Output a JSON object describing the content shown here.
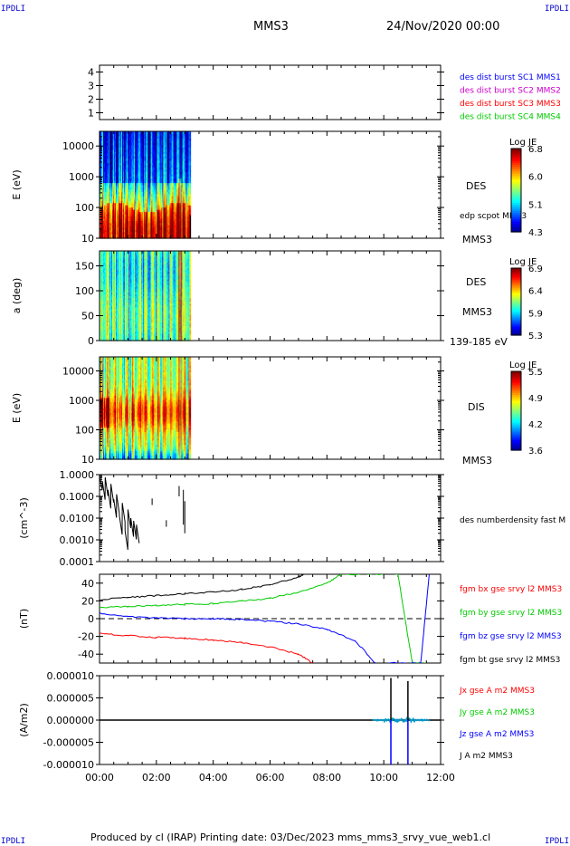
{
  "corner_labels": {
    "top_left": "IPDLI",
    "top_right": "IPDLI",
    "bottom_left": "IPDLI",
    "bottom_right": "IPDLI"
  },
  "header": {
    "spacecraft": "MMS3",
    "date": "24/Nov/2020 00:00"
  },
  "footer": {
    "text": "Produced by cl (IRAP)   Printing date: 03/Dec/2023   mms_mms3_srvy_vue_web1.cl"
  },
  "colors": {
    "mms1": "#0000ff",
    "mms2": "#cc00cc",
    "mms3": "#ff0000",
    "mms4": "#00cc00",
    "black": "#000000"
  },
  "chart_data": [
    {
      "type": "line",
      "panel": "burst-intervals",
      "ylim": [
        0.5,
        4.5
      ],
      "ytick_labels": [
        "4",
        "3",
        "2",
        "1"
      ],
      "legend": [
        {
          "name": "des dist burst SC1 MMS1",
          "color": "#0000ff"
        },
        {
          "name": "des dist burst SC2 MMS2",
          "color": "#cc00cc"
        },
        {
          "name": "des dist burst SC3 MMS3",
          "color": "#ff0000"
        },
        {
          "name": "des dist burst SC4 MMS4",
          "color": "#00cc00"
        }
      ]
    },
    {
      "type": "heatmap",
      "panel": "des-energy",
      "ylabel": "E (eV)",
      "yscale": "log",
      "ylim": [
        10,
        30000
      ],
      "ytick_labels": [
        "10000",
        "1000",
        "100",
        "10"
      ],
      "xlim_hours": [
        0,
        3.2
      ],
      "colorbar": {
        "title": "Log JE",
        "ticks": [
          "6.8",
          "6.0",
          "5.1",
          "4.3"
        ],
        "range": [
          4.3,
          6.8
        ]
      },
      "labels": [
        "DES",
        "edp scpot MMS3",
        "MMS3"
      ]
    },
    {
      "type": "heatmap",
      "panel": "des-pitch",
      "ylabel": "a (deg)",
      "ylim": [
        0,
        180
      ],
      "ytick_labels": [
        "150",
        "100",
        "50",
        "0"
      ],
      "xlim_hours": [
        0,
        3.2
      ],
      "colorbar": {
        "title": "Log JE",
        "ticks": [
          "6.9",
          "6.4",
          "5.9",
          "5.3"
        ],
        "range": [
          5.3,
          6.9
        ]
      },
      "labels": [
        "DES",
        "MMS3",
        "139-185 eV"
      ]
    },
    {
      "type": "heatmap",
      "panel": "dis-energy",
      "ylabel": "E (eV)",
      "yscale": "log",
      "ylim": [
        10,
        30000
      ],
      "ytick_labels": [
        "10000",
        "1000",
        "100",
        "10"
      ],
      "xlim_hours": [
        0,
        3.2
      ],
      "colorbar": {
        "title": "Log JE",
        "ticks": [
          "5.5",
          "4.9",
          "4.2",
          "3.6"
        ],
        "range": [
          3.6,
          5.5
        ]
      },
      "labels": [
        "DIS",
        "MMS3"
      ]
    },
    {
      "type": "line",
      "panel": "density",
      "ylabel": "(cm^-3)",
      "yscale": "log",
      "ylim": [
        0.0001,
        1.0
      ],
      "ytick_labels": [
        "1.0000",
        "0.1000",
        "0.0100",
        "0.0010",
        "0.0001"
      ],
      "legend": [
        {
          "name": "des numberdensity fast M",
          "color": "#000000"
        }
      ],
      "x": [
        0.0,
        0.1,
        0.2,
        0.3,
        0.4,
        0.5,
        0.6,
        0.7,
        0.8,
        0.9,
        1.0,
        1.1,
        1.2,
        1.3
      ],
      "y": [
        0.55,
        0.2,
        0.3,
        0.08,
        0.15,
        0.03,
        0.05,
        0.005,
        0.02,
        0.001,
        0.01,
        0.004,
        0.003,
        0.002
      ]
    },
    {
      "type": "line",
      "panel": "magnetic-field",
      "ylabel": "(nT)",
      "ylim": [
        -50,
        50
      ],
      "ytick_labels": [
        "40",
        "20",
        "0",
        "-20",
        "-40"
      ],
      "x": [
        0,
        1,
        2,
        3,
        4,
        5,
        6,
        7,
        8,
        9,
        10,
        10.5,
        11,
        11.5
      ],
      "series": [
        {
          "name": "fgm bx gse srvy l2 MMS3",
          "color": "#ff0000",
          "x": [
            0,
            1,
            2,
            3,
            4,
            5,
            6,
            7,
            7.5
          ],
          "values": [
            -17,
            -19,
            -21,
            -22,
            -24,
            -27,
            -32,
            -40,
            -50
          ]
        },
        {
          "name": "fgm by gse srvy l2 MMS3",
          "color": "#00cc00",
          "x": [
            0,
            1,
            2,
            3,
            4,
            5,
            6,
            7,
            8,
            8.5,
            10.5,
            11.0,
            11.5
          ],
          "values": [
            12,
            14,
            15,
            16,
            17,
            20,
            23,
            30,
            40,
            50,
            50,
            -50,
            -50
          ]
        },
        {
          "name": "fgm bz gse srvy l2 MMS3",
          "color": "#0000ff",
          "x": [
            0,
            1,
            2,
            3,
            4,
            5,
            6,
            7,
            8,
            9,
            9.7,
            11.3,
            11.6
          ],
          "values": [
            6,
            2,
            1,
            0,
            0,
            -1,
            -3,
            -6,
            -12,
            -25,
            -50,
            -50,
            50
          ]
        },
        {
          "name": "fgm bt gse srvy l2 MMS3",
          "color": "#000000",
          "x": [
            0,
            1,
            2,
            3,
            4,
            5,
            6,
            7,
            7.2
          ],
          "values": [
            21,
            24,
            26,
            28,
            30,
            33,
            38,
            47,
            50
          ]
        }
      ]
    },
    {
      "type": "line",
      "panel": "current-density",
      "ylabel": "(A/m2)",
      "ylim": [
        -1e-05,
        1e-05
      ],
      "ytick_labels": [
        "0.000010",
        "0.000005",
        "0.000000",
        "-0.000005",
        "-0.000010"
      ],
      "xlabel_ticks": [
        "00:00",
        "02:00",
        "04:00",
        "06:00",
        "08:00",
        "10:00",
        "12:00"
      ],
      "series": [
        {
          "name": "Jx gse A m2 MMS3",
          "color": "#ff0000"
        },
        {
          "name": "Jy gse A m2 MMS3",
          "color": "#00cc00"
        },
        {
          "name": "Jz gse A m2 MMS3",
          "color": "#0000ff",
          "spikes": [
            {
              "x": 10.25,
              "y": -1e-05
            },
            {
              "x": 10.85,
              "y": -1e-05
            }
          ]
        },
        {
          "name": "J A m2 MMS3",
          "color": "#000000",
          "spikes": [
            {
              "x": 10.25,
              "y": 9.5e-06
            },
            {
              "x": 10.85,
              "y": 8.8e-06
            }
          ]
        }
      ]
    }
  ]
}
